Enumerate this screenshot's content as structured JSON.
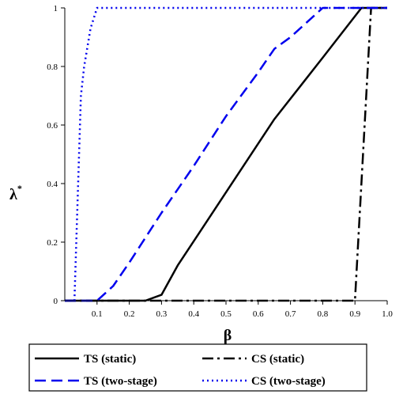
{
  "chart_data": {
    "type": "line",
    "title": "",
    "xlabel": "β",
    "ylabel": "λ",
    "ylabel_superscript": "*",
    "xlim": [
      0,
      1.0
    ],
    "ylim": [
      0,
      1
    ],
    "x_ticks": [
      "0.1",
      "0.2",
      "0.3",
      "0.4",
      "0.5",
      "0.6",
      "0.7",
      "0.8",
      "0.9",
      "1.0"
    ],
    "y_ticks": [
      "0",
      "0.2",
      "0.4",
      "0.6",
      "0.8",
      "1"
    ],
    "grid": false,
    "legend_position": "bottom",
    "series": [
      {
        "name": "TS (static)",
        "color": "#000000",
        "style": "solid",
        "x": [
          0,
          0.25,
          0.3,
          0.35,
          0.5,
          0.65,
          0.8,
          0.92,
          1.0
        ],
        "y": [
          0,
          0,
          0.02,
          0.12,
          0.37,
          0.62,
          0.83,
          1.0,
          1.0
        ]
      },
      {
        "name": "CS (static)",
        "color": "#000000",
        "style": "dashdot",
        "x": [
          0,
          0.2,
          0.3,
          0.9,
          0.95,
          1.0
        ],
        "y": [
          0,
          0,
          0,
          0,
          1.0,
          1.0
        ]
      },
      {
        "name": "TS (two-stage)",
        "color": "#0000ee",
        "style": "dashed",
        "x": [
          0,
          0.1,
          0.15,
          0.2,
          0.3,
          0.4,
          0.5,
          0.6,
          0.65,
          0.7,
          0.8,
          1.0
        ],
        "y": [
          0,
          0,
          0.05,
          0.13,
          0.3,
          0.46,
          0.63,
          0.78,
          0.86,
          0.9,
          1.0,
          1.0
        ]
      },
      {
        "name": "CS (two-stage)",
        "color": "#0000ee",
        "style": "dotted",
        "x": [
          0,
          0.03,
          0.05,
          0.06,
          0.08,
          0.1,
          1.0
        ],
        "y": [
          0,
          0,
          0.7,
          0.8,
          0.93,
          1.0,
          1.0
        ]
      }
    ]
  }
}
